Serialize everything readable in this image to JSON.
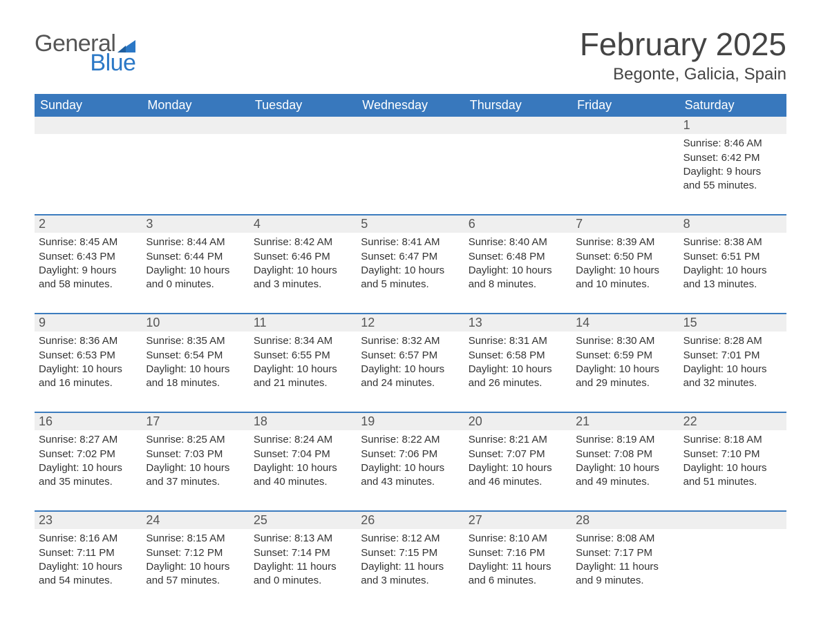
{
  "logo": {
    "general": "General",
    "blue": "Blue"
  },
  "title": "February 2025",
  "location": "Begonte, Galicia, Spain",
  "weekdays": [
    "Sunday",
    "Monday",
    "Tuesday",
    "Wednesday",
    "Thursday",
    "Friday",
    "Saturday"
  ],
  "colors": {
    "header_bg": "#3878bd",
    "header_text": "#ffffff",
    "week_border": "#3c7cbe",
    "daynum_bg": "#efefef",
    "text": "#333333",
    "logo_blue": "#2b78c6"
  },
  "weeks": [
    {
      "cells": [
        {
          "day": "",
          "sunrise": "",
          "sunset": "",
          "daylight1": "",
          "daylight2": ""
        },
        {
          "day": "",
          "sunrise": "",
          "sunset": "",
          "daylight1": "",
          "daylight2": ""
        },
        {
          "day": "",
          "sunrise": "",
          "sunset": "",
          "daylight1": "",
          "daylight2": ""
        },
        {
          "day": "",
          "sunrise": "",
          "sunset": "",
          "daylight1": "",
          "daylight2": ""
        },
        {
          "day": "",
          "sunrise": "",
          "sunset": "",
          "daylight1": "",
          "daylight2": ""
        },
        {
          "day": "",
          "sunrise": "",
          "sunset": "",
          "daylight1": "",
          "daylight2": ""
        },
        {
          "day": "1",
          "sunrise": "Sunrise: 8:46 AM",
          "sunset": "Sunset: 6:42 PM",
          "daylight1": "Daylight: 9 hours",
          "daylight2": "and 55 minutes."
        }
      ]
    },
    {
      "cells": [
        {
          "day": "2",
          "sunrise": "Sunrise: 8:45 AM",
          "sunset": "Sunset: 6:43 PM",
          "daylight1": "Daylight: 9 hours",
          "daylight2": "and 58 minutes."
        },
        {
          "day": "3",
          "sunrise": "Sunrise: 8:44 AM",
          "sunset": "Sunset: 6:44 PM",
          "daylight1": "Daylight: 10 hours",
          "daylight2": "and 0 minutes."
        },
        {
          "day": "4",
          "sunrise": "Sunrise: 8:42 AM",
          "sunset": "Sunset: 6:46 PM",
          "daylight1": "Daylight: 10 hours",
          "daylight2": "and 3 minutes."
        },
        {
          "day": "5",
          "sunrise": "Sunrise: 8:41 AM",
          "sunset": "Sunset: 6:47 PM",
          "daylight1": "Daylight: 10 hours",
          "daylight2": "and 5 minutes."
        },
        {
          "day": "6",
          "sunrise": "Sunrise: 8:40 AM",
          "sunset": "Sunset: 6:48 PM",
          "daylight1": "Daylight: 10 hours",
          "daylight2": "and 8 minutes."
        },
        {
          "day": "7",
          "sunrise": "Sunrise: 8:39 AM",
          "sunset": "Sunset: 6:50 PM",
          "daylight1": "Daylight: 10 hours",
          "daylight2": "and 10 minutes."
        },
        {
          "day": "8",
          "sunrise": "Sunrise: 8:38 AM",
          "sunset": "Sunset: 6:51 PM",
          "daylight1": "Daylight: 10 hours",
          "daylight2": "and 13 minutes."
        }
      ]
    },
    {
      "cells": [
        {
          "day": "9",
          "sunrise": "Sunrise: 8:36 AM",
          "sunset": "Sunset: 6:53 PM",
          "daylight1": "Daylight: 10 hours",
          "daylight2": "and 16 minutes."
        },
        {
          "day": "10",
          "sunrise": "Sunrise: 8:35 AM",
          "sunset": "Sunset: 6:54 PM",
          "daylight1": "Daylight: 10 hours",
          "daylight2": "and 18 minutes."
        },
        {
          "day": "11",
          "sunrise": "Sunrise: 8:34 AM",
          "sunset": "Sunset: 6:55 PM",
          "daylight1": "Daylight: 10 hours",
          "daylight2": "and 21 minutes."
        },
        {
          "day": "12",
          "sunrise": "Sunrise: 8:32 AM",
          "sunset": "Sunset: 6:57 PM",
          "daylight1": "Daylight: 10 hours",
          "daylight2": "and 24 minutes."
        },
        {
          "day": "13",
          "sunrise": "Sunrise: 8:31 AM",
          "sunset": "Sunset: 6:58 PM",
          "daylight1": "Daylight: 10 hours",
          "daylight2": "and 26 minutes."
        },
        {
          "day": "14",
          "sunrise": "Sunrise: 8:30 AM",
          "sunset": "Sunset: 6:59 PM",
          "daylight1": "Daylight: 10 hours",
          "daylight2": "and 29 minutes."
        },
        {
          "day": "15",
          "sunrise": "Sunrise: 8:28 AM",
          "sunset": "Sunset: 7:01 PM",
          "daylight1": "Daylight: 10 hours",
          "daylight2": "and 32 minutes."
        }
      ]
    },
    {
      "cells": [
        {
          "day": "16",
          "sunrise": "Sunrise: 8:27 AM",
          "sunset": "Sunset: 7:02 PM",
          "daylight1": "Daylight: 10 hours",
          "daylight2": "and 35 minutes."
        },
        {
          "day": "17",
          "sunrise": "Sunrise: 8:25 AM",
          "sunset": "Sunset: 7:03 PM",
          "daylight1": "Daylight: 10 hours",
          "daylight2": "and 37 minutes."
        },
        {
          "day": "18",
          "sunrise": "Sunrise: 8:24 AM",
          "sunset": "Sunset: 7:04 PM",
          "daylight1": "Daylight: 10 hours",
          "daylight2": "and 40 minutes."
        },
        {
          "day": "19",
          "sunrise": "Sunrise: 8:22 AM",
          "sunset": "Sunset: 7:06 PM",
          "daylight1": "Daylight: 10 hours",
          "daylight2": "and 43 minutes."
        },
        {
          "day": "20",
          "sunrise": "Sunrise: 8:21 AM",
          "sunset": "Sunset: 7:07 PM",
          "daylight1": "Daylight: 10 hours",
          "daylight2": "and 46 minutes."
        },
        {
          "day": "21",
          "sunrise": "Sunrise: 8:19 AM",
          "sunset": "Sunset: 7:08 PM",
          "daylight1": "Daylight: 10 hours",
          "daylight2": "and 49 minutes."
        },
        {
          "day": "22",
          "sunrise": "Sunrise: 8:18 AM",
          "sunset": "Sunset: 7:10 PM",
          "daylight1": "Daylight: 10 hours",
          "daylight2": "and 51 minutes."
        }
      ]
    },
    {
      "cells": [
        {
          "day": "23",
          "sunrise": "Sunrise: 8:16 AM",
          "sunset": "Sunset: 7:11 PM",
          "daylight1": "Daylight: 10 hours",
          "daylight2": "and 54 minutes."
        },
        {
          "day": "24",
          "sunrise": "Sunrise: 8:15 AM",
          "sunset": "Sunset: 7:12 PM",
          "daylight1": "Daylight: 10 hours",
          "daylight2": "and 57 minutes."
        },
        {
          "day": "25",
          "sunrise": "Sunrise: 8:13 AM",
          "sunset": "Sunset: 7:14 PM",
          "daylight1": "Daylight: 11 hours",
          "daylight2": "and 0 minutes."
        },
        {
          "day": "26",
          "sunrise": "Sunrise: 8:12 AM",
          "sunset": "Sunset: 7:15 PM",
          "daylight1": "Daylight: 11 hours",
          "daylight2": "and 3 minutes."
        },
        {
          "day": "27",
          "sunrise": "Sunrise: 8:10 AM",
          "sunset": "Sunset: 7:16 PM",
          "daylight1": "Daylight: 11 hours",
          "daylight2": "and 6 minutes."
        },
        {
          "day": "28",
          "sunrise": "Sunrise: 8:08 AM",
          "sunset": "Sunset: 7:17 PM",
          "daylight1": "Daylight: 11 hours",
          "daylight2": "and 9 minutes."
        },
        {
          "day": "",
          "sunrise": "",
          "sunset": "",
          "daylight1": "",
          "daylight2": ""
        }
      ]
    }
  ]
}
